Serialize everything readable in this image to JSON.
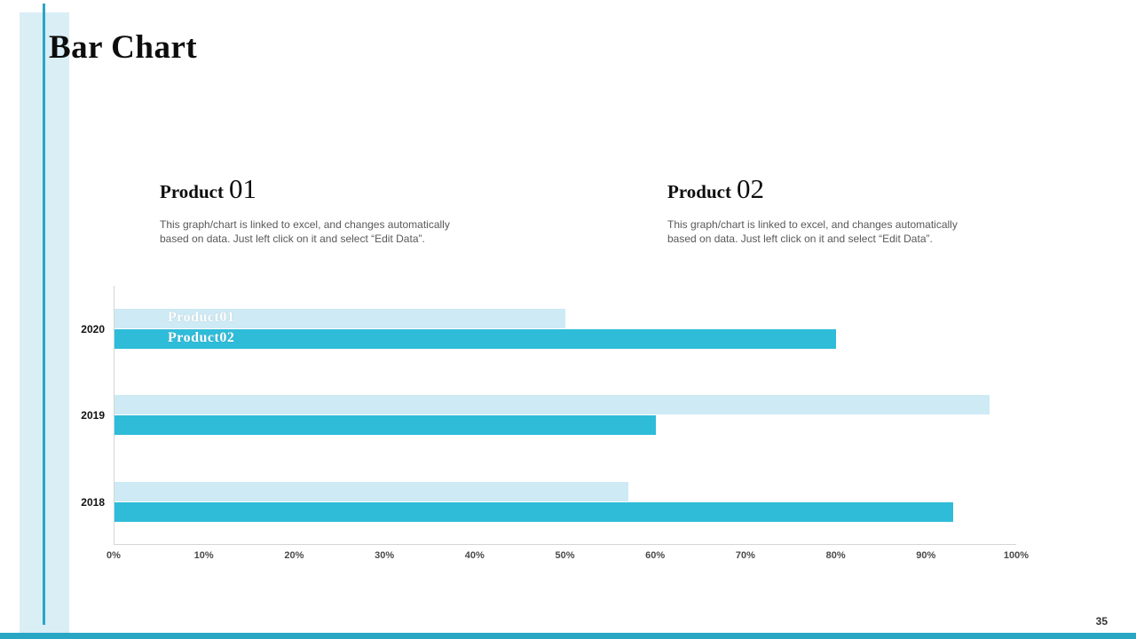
{
  "slide": {
    "title": "Bar Chart",
    "page_number": "35"
  },
  "products": [
    {
      "label": "Product",
      "number": "01",
      "description": "This graph/chart is linked to excel, and changes automatically based on data. Just left click on it and select “Edit Data”."
    },
    {
      "label": "Product",
      "number": "02",
      "description": "This graph/chart is linked to excel, and changes automatically based on data. Just left click on it and select “Edit Data”."
    }
  ],
  "chart_data": {
    "type": "bar",
    "orientation": "horizontal",
    "title": "Bar Chart",
    "categories": [
      "2020",
      "2019",
      "2018"
    ],
    "series": [
      {
        "name": "Product01",
        "color": "#cdeaf5",
        "values": [
          50,
          97,
          57
        ]
      },
      {
        "name": "Product02",
        "color": "#2ebcd9",
        "values": [
          80,
          60,
          93
        ]
      }
    ],
    "x_ticks": [
      "0%",
      "10%",
      "20%",
      "30%",
      "40%",
      "50%",
      "60%",
      "70%",
      "80%",
      "90%",
      "100%"
    ],
    "xlim": [
      0,
      100
    ],
    "grid": "off",
    "legend": "inside-first-bars",
    "bar_labels_on_first_category": true
  },
  "colors": {
    "accent_teal": "#2aa6c5",
    "stripe_blue": "#daeef6",
    "bar_light": "#cdeaf5",
    "bar_cyan": "#2ebcd9",
    "text_gray": "#595959"
  }
}
